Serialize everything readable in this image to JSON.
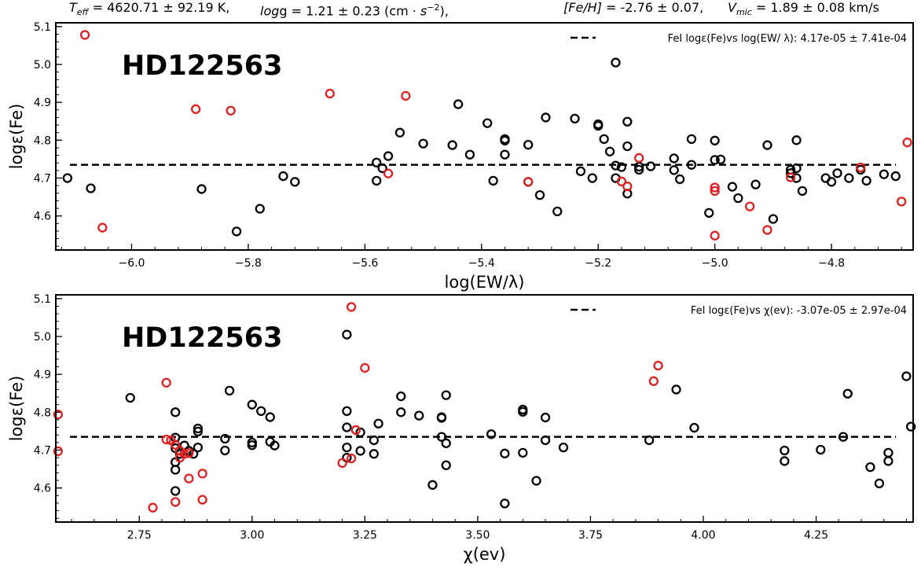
{
  "header": {
    "teff_symbol": "T",
    "teff_sub": "eff",
    "teff_text": " = 4620.71 ± 92.19 K,",
    "logg_symbol": "log",
    "logg_text": "g = 1.21 ± 0.23 (cm · ",
    "logg_unit_s": "s",
    "logg_unit_exp": "−2",
    "logg_tail": "),",
    "feh_symbol": "[Fe/H]",
    "feh_text": " = -2.76 ± 0.07,",
    "vmic_symbol": "V",
    "vmic_sub": "mic",
    "vmic_text": " = 1.89 ± 0.08 km/s"
  },
  "chart_data": [
    {
      "type": "scatter",
      "star_label": "HD122563",
      "xlabel": "log(EW/λ)",
      "ylabel": "logε(Fe)",
      "xlim": [
        -6.13,
        -4.66
      ],
      "ylim": [
        4.51,
        5.11
      ],
      "xticks": [
        -6.0,
        -5.8,
        -5.6,
        -5.4,
        -5.2,
        -5.0,
        -4.8
      ],
      "xtick_labels": [
        "−6.0",
        "−5.8",
        "−5.6",
        "−5.4",
        "−5.2",
        "−5.0",
        "−4.8"
      ],
      "yticks": [
        4.6,
        4.7,
        4.8,
        4.9,
        5.0,
        5.1
      ],
      "ytick_labels": [
        "4.6",
        "4.7",
        "4.8",
        "4.9",
        "5.0",
        "5.1"
      ],
      "fit_line": {
        "y": 4.735,
        "style": "dashed",
        "color": "#000000"
      },
      "legend": {
        "location": "top-right",
        "label": "FeI logε(Fe)vs log(EW/ λ): 4.17e-05 ± 7.41e-04"
      },
      "series": [
        {
          "color": "#000000",
          "points": [
            [
              -6.11,
              4.7
            ],
            [
              -6.07,
              4.673
            ],
            [
              -5.88,
              4.671
            ],
            [
              -5.82,
              4.559
            ],
            [
              -5.78,
              4.619
            ],
            [
              -5.74,
              4.705
            ],
            [
              -5.72,
              4.69
            ],
            [
              -5.58,
              4.741
            ],
            [
              -5.58,
              4.693
            ],
            [
              -5.56,
              4.758
            ],
            [
              -5.57,
              4.726
            ],
            [
              -5.54,
              4.82
            ],
            [
              -5.5,
              4.791
            ],
            [
              -5.45,
              4.787
            ],
            [
              -5.44,
              4.895
            ],
            [
              -5.42,
              4.762
            ],
            [
              -5.39,
              4.845
            ],
            [
              -5.38,
              4.693
            ],
            [
              -5.36,
              4.803
            ],
            [
              -5.36,
              4.799
            ],
            [
              -5.36,
              4.762
            ],
            [
              -5.32,
              4.788
            ],
            [
              -5.32,
              4.69
            ],
            [
              -5.3,
              4.655
            ],
            [
              -5.29,
              4.86
            ],
            [
              -5.27,
              4.612
            ],
            [
              -5.24,
              4.857
            ],
            [
              -5.23,
              4.718
            ],
            [
              -5.21,
              4.7
            ],
            [
              -5.2,
              4.842
            ],
            [
              -5.2,
              4.838
            ],
            [
              -5.19,
              4.803
            ],
            [
              -5.18,
              4.77
            ],
            [
              -5.17,
              4.733
            ],
            [
              -5.17,
              4.7
            ],
            [
              -5.17,
              5.005
            ],
            [
              -5.16,
              4.729
            ],
            [
              -5.15,
              4.659
            ],
            [
              -5.15,
              4.784
            ],
            [
              -5.15,
              4.849
            ],
            [
              -5.13,
              4.73
            ],
            [
              -5.13,
              4.722
            ],
            [
              -5.11,
              4.731
            ],
            [
              -5.07,
              4.752
            ],
            [
              -5.07,
              4.721
            ],
            [
              -5.06,
              4.697
            ],
            [
              -5.04,
              4.735
            ],
            [
              -5.04,
              4.803
            ],
            [
              -5.01,
              4.608
            ],
            [
              -5.0,
              4.748
            ],
            [
              -5.0,
              4.799
            ],
            [
              -4.99,
              4.749
            ],
            [
              -4.97,
              4.677
            ],
            [
              -4.96,
              4.647
            ],
            [
              -4.93,
              4.683
            ],
            [
              -4.91,
              4.787
            ],
            [
              -4.9,
              4.592
            ],
            [
              -4.87,
              4.722
            ],
            [
              -4.87,
              4.713
            ],
            [
              -4.86,
              4.726
            ],
            [
              -4.86,
              4.7
            ],
            [
              -4.86,
              4.8
            ],
            [
              -4.85,
              4.666
            ],
            [
              -4.81,
              4.7
            ],
            [
              -4.8,
              4.69
            ],
            [
              -4.79,
              4.713
            ],
            [
              -4.77,
              4.7
            ],
            [
              -4.75,
              4.722
            ],
            [
              -4.74,
              4.693
            ],
            [
              -4.71,
              4.71
            ],
            [
              -4.69,
              4.705
            ]
          ]
        },
        {
          "color": "#e02020",
          "points": [
            [
              -6.08,
              5.078
            ],
            [
              -6.05,
              4.569
            ],
            [
              -5.89,
              4.882
            ],
            [
              -5.83,
              4.878
            ],
            [
              -5.66,
              4.923
            ],
            [
              -5.56,
              4.712
            ],
            [
              -5.53,
              4.917
            ],
            [
              -5.32,
              4.69
            ],
            [
              -5.16,
              4.691
            ],
            [
              -5.15,
              4.678
            ],
            [
              -5.13,
              4.753
            ],
            [
              -5.0,
              4.675
            ],
            [
              -5.0,
              4.666
            ],
            [
              -5.0,
              4.548
            ],
            [
              -4.94,
              4.625
            ],
            [
              -4.91,
              4.563
            ],
            [
              -4.87,
              4.702
            ],
            [
              -4.75,
              4.728
            ],
            [
              -4.68,
              4.638
            ],
            [
              -4.67,
              4.794
            ]
          ]
        }
      ]
    },
    {
      "type": "scatter",
      "star_label": "HD122563",
      "xlabel": "χ(ev)",
      "ylabel": "logε(Fe)",
      "xlim": [
        2.565,
        4.465
      ],
      "ylim": [
        4.51,
        5.11
      ],
      "xticks": [
        2.75,
        3.0,
        3.25,
        3.5,
        3.75,
        4.0,
        4.25
      ],
      "xtick_labels": [
        "2.75",
        "3.00",
        "3.25",
        "3.50",
        "3.75",
        "4.00",
        "4.25"
      ],
      "yticks": [
        4.6,
        4.7,
        4.8,
        4.9,
        5.0,
        5.1
      ],
      "ytick_labels": [
        "4.6",
        "4.7",
        "4.8",
        "4.9",
        "5.0",
        "5.1"
      ],
      "fit_line": {
        "y": 4.735,
        "style": "dashed",
        "color": "#000000"
      },
      "legend": {
        "location": "top-right",
        "label": "FeI logε(Fe)vs  χ(ev): -3.07e-05 ± 2.97e-04"
      },
      "series": [
        {
          "color": "#000000",
          "points": [
            [
              2.73,
              4.838
            ],
            [
              2.83,
              4.8
            ],
            [
              2.83,
              4.733
            ],
            [
              2.83,
              4.705
            ],
            [
              2.83,
              4.668
            ],
            [
              2.83,
              4.648
            ],
            [
              2.83,
              4.592
            ],
            [
              2.84,
              4.69
            ],
            [
              2.85,
              4.712
            ],
            [
              2.86,
              4.698
            ],
            [
              2.87,
              4.69
            ],
            [
              2.88,
              4.757
            ],
            [
              2.88,
              4.749
            ],
            [
              2.88,
              4.707
            ],
            [
              2.94,
              4.73
            ],
            [
              2.94,
              4.699
            ],
            [
              2.95,
              4.857
            ],
            [
              3.0,
              4.72
            ],
            [
              3.0,
              4.713
            ],
            [
              3.0,
              4.82
            ],
            [
              3.02,
              4.803
            ],
            [
              3.04,
              4.787
            ],
            [
              3.04,
              4.722
            ],
            [
              3.05,
              4.712
            ],
            [
              3.21,
              5.005
            ],
            [
              3.21,
              4.803
            ],
            [
              3.21,
              4.76
            ],
            [
              3.21,
              4.707
            ],
            [
              3.21,
              4.68
            ],
            [
              3.24,
              4.747
            ],
            [
              3.24,
              4.698
            ],
            [
              3.27,
              4.726
            ],
            [
              3.27,
              4.69
            ],
            [
              3.28,
              4.77
            ],
            [
              3.33,
              4.842
            ],
            [
              3.33,
              4.8
            ],
            [
              3.37,
              4.791
            ],
            [
              3.4,
              4.608
            ],
            [
              3.42,
              4.787
            ],
            [
              3.42,
              4.785
            ],
            [
              3.42,
              4.735
            ],
            [
              3.43,
              4.845
            ],
            [
              3.43,
              4.718
            ],
            [
              3.43,
              4.66
            ],
            [
              3.53,
              4.742
            ],
            [
              3.56,
              4.691
            ],
            [
              3.56,
              4.559
            ],
            [
              3.6,
              4.807
            ],
            [
              3.6,
              4.801
            ],
            [
              3.6,
              4.693
            ],
            [
              3.63,
              4.619
            ],
            [
              3.65,
              4.786
            ],
            [
              3.65,
              4.726
            ],
            [
              3.69,
              4.707
            ],
            [
              3.88,
              4.726
            ],
            [
              3.94,
              4.86
            ],
            [
              3.98,
              4.759
            ],
            [
              4.18,
              4.699
            ],
            [
              4.18,
              4.671
            ],
            [
              4.26,
              4.701
            ],
            [
              4.31,
              4.735
            ],
            [
              4.32,
              4.849
            ],
            [
              4.37,
              4.655
            ],
            [
              4.39,
              4.612
            ],
            [
              4.41,
              4.693
            ],
            [
              4.41,
              4.671
            ],
            [
              4.45,
              4.895
            ],
            [
              4.46,
              4.762
            ]
          ]
        },
        {
          "color": "#e02020",
          "points": [
            [
              2.57,
              4.794
            ],
            [
              2.57,
              4.697
            ],
            [
              2.78,
              4.548
            ],
            [
              2.81,
              4.878
            ],
            [
              2.81,
              4.728
            ],
            [
              2.82,
              4.726
            ],
            [
              2.83,
              4.714
            ],
            [
              2.83,
              4.563
            ],
            [
              2.84,
              4.698
            ],
            [
              2.84,
              4.68
            ],
            [
              2.85,
              4.69
            ],
            [
              2.86,
              4.625
            ],
            [
              2.86,
              4.692
            ],
            [
              2.89,
              4.638
            ],
            [
              2.89,
              4.569
            ],
            [
              3.2,
              4.666
            ],
            [
              3.22,
              5.078
            ],
            [
              3.22,
              4.678
            ],
            [
              3.23,
              4.753
            ],
            [
              3.25,
              4.917
            ],
            [
              3.89,
              4.882
            ],
            [
              3.9,
              4.923
            ]
          ]
        }
      ]
    }
  ]
}
